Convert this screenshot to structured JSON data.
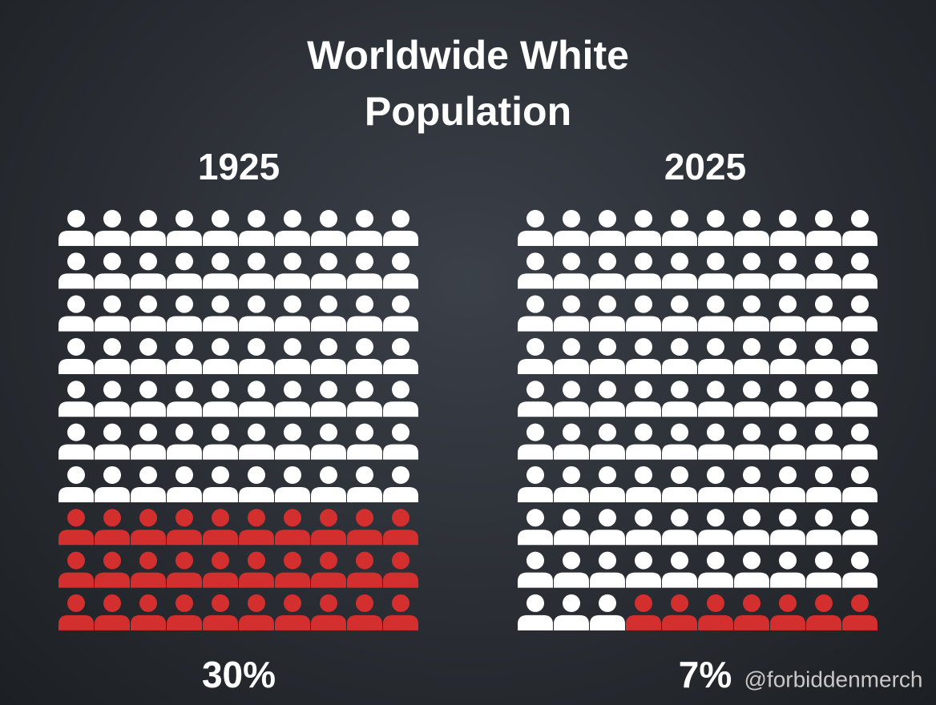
{
  "title": "Worldwide White Population",
  "chart_data": [
    {
      "type": "waffle",
      "title": "1925",
      "values": [
        30
      ],
      "value_labels": [
        "30%"
      ],
      "color": "#d32f2f",
      "base_color": "#ffffff"
    },
    {
      "type": "waffle",
      "title": "2025",
      "values": [
        7
      ],
      "value_labels": [
        "7%"
      ],
      "color": "#d32f2f",
      "base_color": "#ffffff"
    }
  ],
  "watermark": "@forbiddenmerch"
}
